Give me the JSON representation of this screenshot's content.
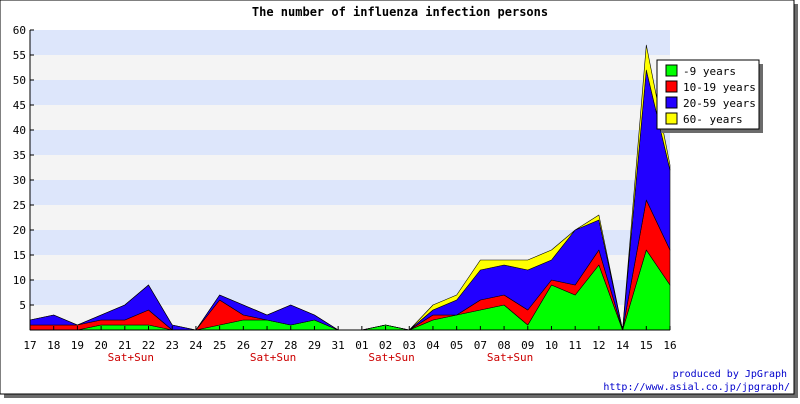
{
  "chart_data": {
    "type": "area",
    "stacked": true,
    "title": "The number of influenza infection persons",
    "xlabel": "",
    "ylabel": "",
    "ylim": [
      0,
      60
    ],
    "yticks": [
      0,
      5,
      10,
      15,
      20,
      25,
      30,
      35,
      40,
      45,
      50,
      55,
      60
    ],
    "grid": "horizontal bands",
    "legend_position": "top-right",
    "categories": [
      "17",
      "18",
      "19",
      "20",
      "21",
      "22",
      "23",
      "24",
      "25",
      "26",
      "27",
      "28",
      "29",
      "31",
      "01",
      "02",
      "03",
      "04",
      "05",
      "07",
      "08",
      "09",
      "10",
      "11",
      "12",
      "14",
      "15",
      "16"
    ],
    "weekend_label": "Sat+Sun",
    "weekend_ticks": [
      "21",
      "27",
      "02",
      "08"
    ],
    "series": [
      {
        "name": "-9 years",
        "color": "#00ff00",
        "values": [
          0,
          0,
          0,
          1,
          1,
          1,
          0,
          0,
          1,
          2,
          2,
          1,
          2,
          0,
          0,
          1,
          0,
          2,
          3,
          4,
          5,
          1,
          9,
          7,
          13,
          0,
          16,
          9
        ]
      },
      {
        "name": "10-19 years",
        "color": "#ff0000",
        "values": [
          1,
          1,
          1,
          1,
          1,
          3,
          0,
          0,
          5,
          1,
          0,
          0,
          0,
          0,
          0,
          0,
          0,
          1,
          0,
          2,
          2,
          3,
          1,
          2,
          3,
          0,
          10,
          7
        ]
      },
      {
        "name": "20-59 years",
        "color": "#2200ff",
        "values": [
          1,
          2,
          0,
          1,
          3,
          5,
          1,
          0,
          1,
          2,
          1,
          4,
          1,
          0,
          0,
          0,
          0,
          1,
          3,
          6,
          6,
          8,
          4,
          11,
          6,
          0,
          26,
          16
        ]
      },
      {
        "name": "60- years",
        "color": "#ffff00",
        "values": [
          0,
          0,
          0,
          0,
          0,
          0,
          0,
          0,
          0,
          0,
          0,
          0,
          0,
          0,
          0,
          0,
          0,
          1,
          1,
          2,
          1,
          2,
          2,
          0,
          1,
          0,
          5,
          1
        ]
      }
    ]
  },
  "credits": {
    "line1": "produced by JpGraph",
    "line2": "http://www.asial.co.jp/jpgraph/"
  },
  "colors": {
    "band_blue": "#dde6fb",
    "band_grey": "#f4f4f4",
    "credit_text": "#0000cc",
    "weekend_text": "#cc0000"
  }
}
